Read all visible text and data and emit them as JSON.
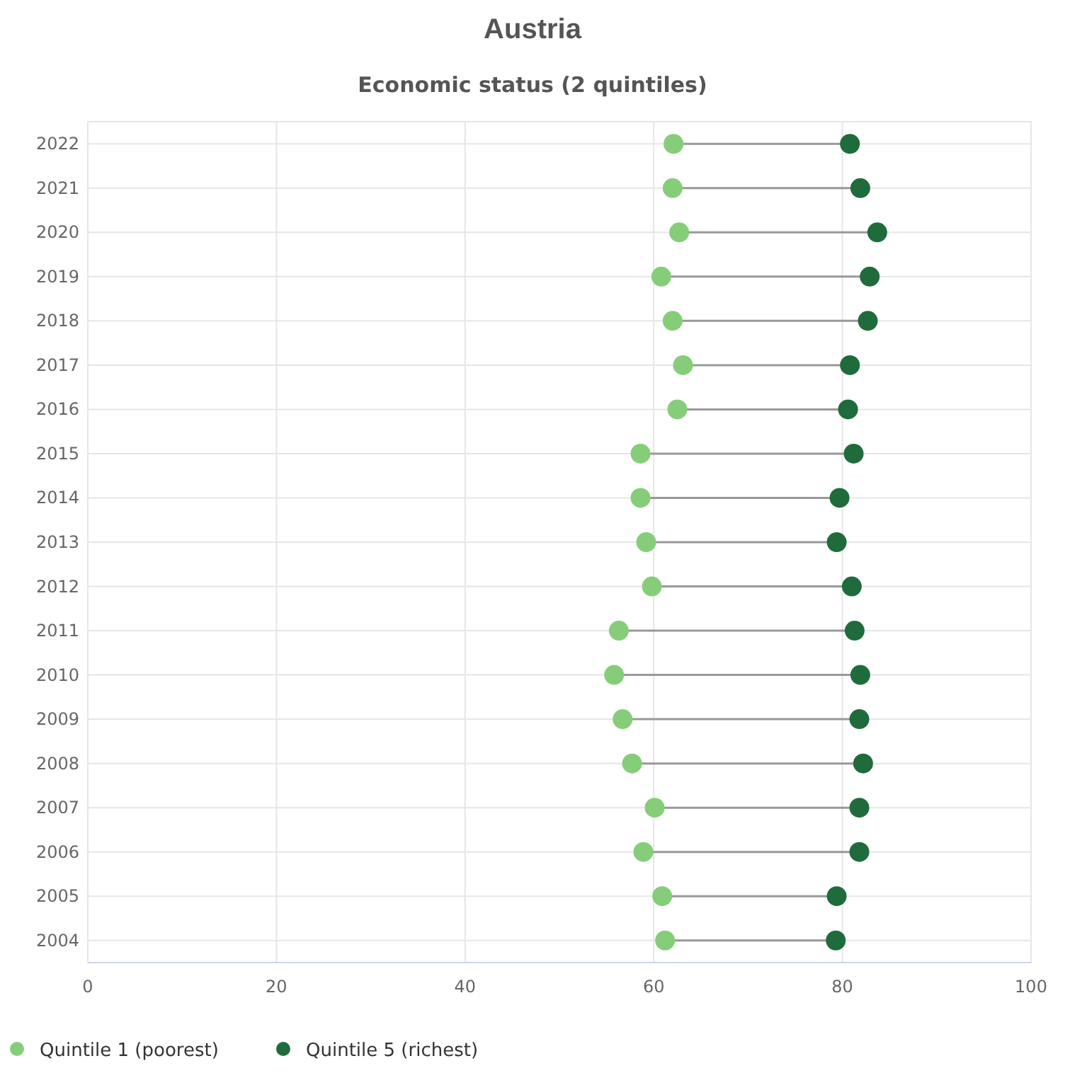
{
  "chart_data": {
    "type": "scatter",
    "orientation": "horizontal",
    "title": "Austria",
    "subtitle": "Economic status (2 quintiles)",
    "categories": [
      "2022",
      "2021",
      "2020",
      "2019",
      "2018",
      "2017",
      "2016",
      "2015",
      "2014",
      "2013",
      "2012",
      "2011",
      "2010",
      "2009",
      "2008",
      "2007",
      "2006",
      "2005",
      "2004"
    ],
    "xlim": [
      0,
      100
    ],
    "xticks": [
      0,
      20,
      40,
      60,
      80,
      100
    ],
    "grid": true,
    "legend": "bottom left",
    "marker": "circle",
    "series": [
      {
        "name": "Quintile 1 (poorest)",
        "color": "#86cd7a",
        "values": [
          62.1,
          62.0,
          62.7,
          60.8,
          62.0,
          63.1,
          62.5,
          58.6,
          58.6,
          59.2,
          59.8,
          56.3,
          55.8,
          56.7,
          57.7,
          60.1,
          58.9,
          60.9,
          61.2
        ]
      },
      {
        "name": "Quintile 5 (richest)",
        "color": "#1f6b3c",
        "values": [
          80.8,
          81.9,
          83.7,
          82.9,
          82.7,
          80.8,
          80.6,
          81.2,
          79.7,
          79.4,
          81.0,
          81.3,
          81.9,
          81.8,
          82.2,
          81.8,
          81.8,
          79.4,
          79.3
        ]
      }
    ]
  }
}
